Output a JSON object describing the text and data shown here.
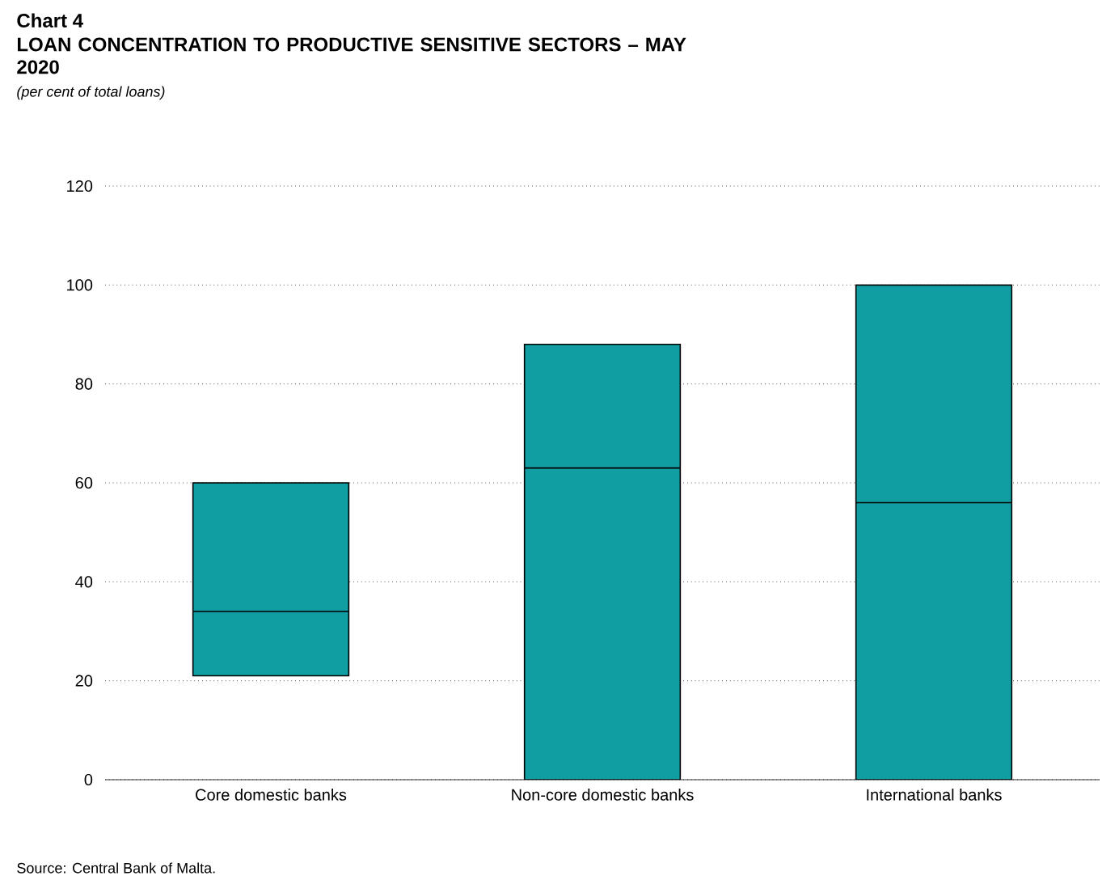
{
  "chart_data": {
    "type": "box",
    "title": "Chart 4",
    "subtitle": "LOAN CONCENTRATION TO PRODUCTIVE SENSITIVE SECTORS – MAY 2020",
    "categories": [
      "Core domestic banks",
      "Non-core domestic banks",
      "International banks"
    ],
    "boxes": [
      {
        "low": 21,
        "q1": 21,
        "median": 34,
        "q3": 60,
        "high": 60
      },
      {
        "low": 0,
        "q1": 0,
        "median": 63,
        "q3": 88,
        "high": 88
      },
      {
        "low": 0,
        "q1": 0,
        "median": 56,
        "q3": 100,
        "high": 100
      }
    ],
    "color": "#109ea3",
    "ylim": [
      0,
      120
    ],
    "yticks": [
      0,
      20,
      40,
      60,
      80,
      100,
      120
    ],
    "grid": "y",
    "annotations": [
      "(per cent of total loans)",
      "Source: Central Bank of Malta."
    ]
  }
}
